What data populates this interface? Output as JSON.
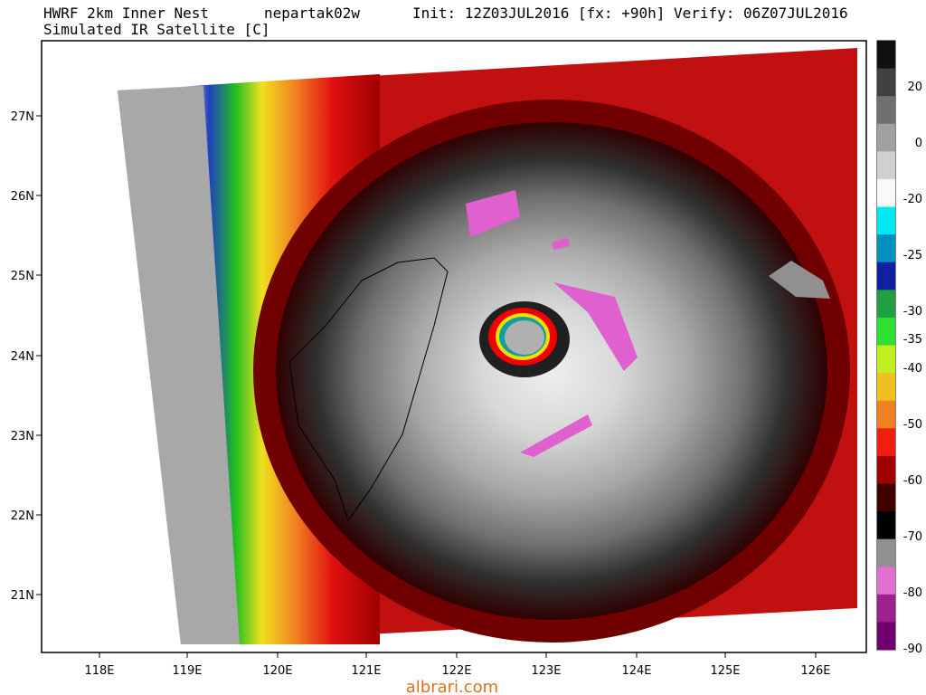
{
  "header": {
    "model": "HWRF 2km Inner Nest",
    "storm": "nepartak02w",
    "init": "Init: 12Z03JUL2016 [fx: +90h] Verify: 06Z07JUL2016",
    "product": "Simulated IR Satellite [C]"
  },
  "map": {
    "lat_labels": [
      "27N",
      "26N",
      "25N",
      "24N",
      "23N",
      "22N",
      "21N"
    ],
    "lon_labels": [
      "118E",
      "119E",
      "120E",
      "121E",
      "122E",
      "123E",
      "124E",
      "125E",
      "126E"
    ]
  },
  "colorbar": {
    "labels": [
      "20",
      "0",
      "-20",
      "-25",
      "-30",
      "-35",
      "-40",
      "-50",
      "-60",
      "-70",
      "-80",
      "-90"
    ]
  },
  "watermark": "albrari.com"
}
